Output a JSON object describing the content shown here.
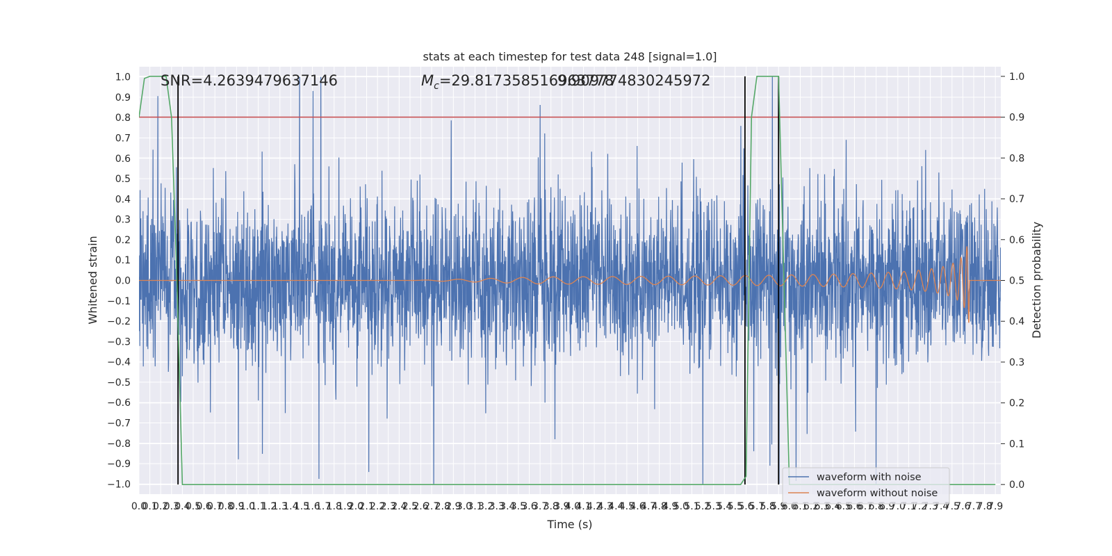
{
  "chart_data": {
    "type": "line",
    "title": "stats at each timestep for test data 248 [signal=1.0]",
    "xlabel": "Time (s)",
    "ylabel": "Whitened strain",
    "y2label": "Detection probability",
    "xlim": [
      0,
      7.95
    ],
    "ylim": [
      -1.05,
      1.05
    ],
    "y2lim": [
      -0.0236,
      1.0236
    ],
    "x_ticks": [
      "0.0",
      "0.1",
      "0.2",
      "0.3",
      "0.4",
      "0.5",
      "0.6",
      "0.7",
      "0.8",
      "0.9",
      "1.0",
      "1.1",
      "1.2",
      "1.3",
      "1.4",
      "1.5",
      "1.6",
      "1.7",
      "1.8",
      "1.9",
      "2.0",
      "2.1",
      "2.2",
      "2.3",
      "2.4",
      "2.5",
      "2.6",
      "2.7",
      "2.8",
      "2.9",
      "3.0",
      "3.1",
      "3.2",
      "3.3",
      "3.4",
      "3.5",
      "3.6",
      "3.7",
      "3.8",
      "3.9",
      "4.0",
      "4.1",
      "4.2",
      "4.3",
      "4.4",
      "4.5",
      "4.6",
      "4.7",
      "4.8",
      "4.9",
      "5.0",
      "5.1",
      "5.2",
      "5.3",
      "5.4",
      "5.5",
      "5.6",
      "5.7",
      "5.8",
      "5.9",
      "6.0",
      "6.1",
      "6.2",
      "6.3",
      "6.4",
      "6.5",
      "6.6",
      "6.7",
      "6.8",
      "6.9",
      "7.0",
      "7.1",
      "7.2",
      "7.3",
      "7.4",
      "7.5",
      "7.6",
      "7.7",
      "7.8",
      "7.9"
    ],
    "y_ticks": [
      "1.0",
      "0.9",
      "0.8",
      "0.7",
      "0.6",
      "0.5",
      "0.4",
      "0.3",
      "0.2",
      "0.1",
      "0.0",
      "−0.1",
      "−0.2",
      "−0.3",
      "−0.4",
      "−0.5",
      "−0.6",
      "−0.7",
      "−0.8",
      "−0.9",
      "−1.0"
    ],
    "y2_ticks": [
      "1.0",
      "0.9",
      "0.8",
      "0.7",
      "0.6",
      "0.5",
      "0.4",
      "0.3",
      "0.2",
      "0.1",
      "0.0"
    ],
    "annotations": {
      "snr": "SNR=4.2639479637146",
      "mc_prefix": "M",
      "mc_sub": "c",
      "mc_value": "=29.817358516963778",
      "overlap": "9.909774830245972"
    },
    "series": [
      {
        "name": "waveform with noise",
        "color": "#4c72b0",
        "description_range": [
          -1.0,
          1.0
        ]
      },
      {
        "name": "waveform without noise",
        "color": "#dd8452"
      },
      {
        "color": "#55a868",
        "x": [
          0.0,
          0.05,
          0.1,
          0.15,
          0.2,
          0.25,
          0.3,
          0.35,
          0.4,
          0.45,
          5.55,
          5.6,
          5.65,
          5.7,
          5.75,
          5.8,
          5.85,
          5.9,
          5.95,
          6.0,
          6.05,
          6.1,
          7.9
        ],
        "y": [
          0.9,
          0.995,
          1.0,
          1.0,
          1.0,
          1.0,
          0.9,
          0.5,
          0.0,
          0.0,
          0.0,
          0.02,
          0.9,
          1.0,
          1.0,
          1.0,
          1.0,
          1.0,
          0.5,
          0.0,
          0.0,
          0.0,
          0.0
        ]
      }
    ],
    "threshold": {
      "value": 0.9,
      "color": "#c44e52"
    },
    "vlines": [
      0.36,
      5.59,
      5.9
    ],
    "legend": {
      "placement": "lower-right"
    },
    "grid": true
  }
}
